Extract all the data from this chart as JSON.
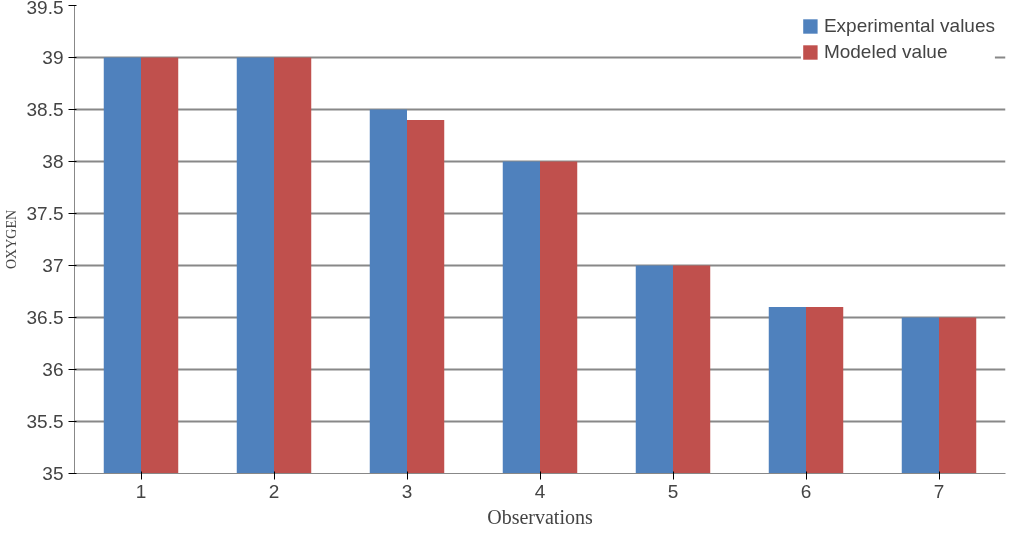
{
  "chart_data": {
    "type": "bar",
    "xlabel": "Observations",
    "ylabel": "OXYGEN",
    "categories": [
      "1",
      "2",
      "3",
      "4",
      "5",
      "6",
      "7"
    ],
    "series": [
      {
        "name": "Experimental values",
        "color": "#4f81bd",
        "values": [
          39,
          39,
          38.5,
          38,
          37,
          36.6,
          36.5
        ]
      },
      {
        "name": "Modeled value",
        "color": "#c0504d",
        "values": [
          39,
          39,
          38.4,
          38,
          37,
          36.6,
          36.5
        ]
      }
    ],
    "ylim": [
      35,
      39.5
    ],
    "yticks": [
      35,
      35.5,
      36,
      36.5,
      37,
      37.5,
      38,
      38.5,
      39,
      39.5
    ],
    "grid": "y",
    "legend": "top right"
  }
}
